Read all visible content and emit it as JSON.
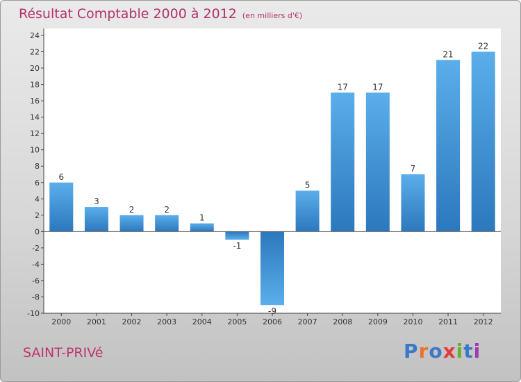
{
  "chart_data": {
    "type": "bar",
    "title": "Résultat Comptable 2000 à 2012",
    "unit_note": "(en milliers d'€)",
    "xlabel": "",
    "ylabel": "",
    "categories": [
      "2000",
      "2001",
      "2002",
      "2003",
      "2004",
      "2005",
      "2006",
      "2007",
      "2008",
      "2009",
      "2010",
      "2011",
      "2012"
    ],
    "values": [
      6,
      3,
      2,
      2,
      1,
      -1,
      -9,
      5,
      17,
      17,
      7,
      21,
      22
    ],
    "ylim": [
      -10,
      24
    ],
    "yticks": [
      -10,
      -8,
      -6,
      -4,
      -2,
      0,
      2,
      4,
      6,
      8,
      10,
      12,
      14,
      16,
      18,
      20,
      22,
      24
    ],
    "grid": false,
    "bar_color": "#3a8fd6"
  },
  "footer": {
    "commune": "SAINT-PRIVé",
    "logo_letters": [
      "P",
      "r",
      "o",
      "x",
      "i",
      "t",
      "i"
    ],
    "logo_colors": [
      "#3b78c7",
      "#e8742c",
      "#3b78c7",
      "#e23c3c",
      "#6aaf2e",
      "#3b78c7",
      "#9b3fb0"
    ]
  }
}
